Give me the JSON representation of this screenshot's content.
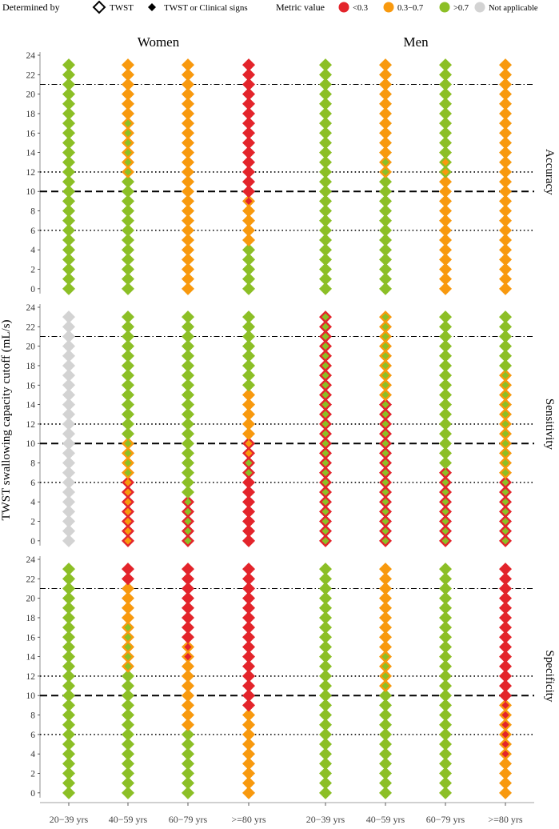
{
  "chart_data": {
    "type": "dot-matrix",
    "ylabel": "TWST swallowing capacity cutoff (mL/s)",
    "y_ticks": [
      0,
      2,
      4,
      6,
      8,
      10,
      12,
      14,
      16,
      18,
      20,
      22,
      24
    ],
    "y_values": [
      0,
      1,
      2,
      3,
      4,
      5,
      6,
      7,
      8,
      9,
      10,
      11,
      12,
      13,
      14,
      15,
      16,
      17,
      18,
      19,
      20,
      21,
      22,
      23
    ],
    "ylim": [
      0,
      24
    ],
    "groups": [
      "Women",
      "Men"
    ],
    "age_groups": [
      "20−39 yrs",
      "40−59 yrs",
      "60−79 yrs",
      ">=80 yrs"
    ],
    "panels": [
      "Accuracy",
      "Sensitivity",
      "Specificity"
    ],
    "reference_lines": [
      {
        "y": 6,
        "style": "dotted"
      },
      {
        "y": 10,
        "style": "dashed"
      },
      {
        "y": 12,
        "style": "dotted"
      },
      {
        "y": 21,
        "style": "dashdot"
      }
    ],
    "legend": {
      "shape_title": "Determined by",
      "shapes": [
        {
          "label": "TWST",
          "shape": "hollow-diamond"
        },
        {
          "label": "TWST or Clinical signs",
          "shape": "filled-diamond"
        }
      ],
      "color_title": "Metric value",
      "colors": [
        {
          "key": "R",
          "label": "<0.3",
          "color": "#e3242b"
        },
        {
          "key": "O",
          "label": "0.3−0.7",
          "color": "#f8990e"
        },
        {
          "key": "G",
          "label": ">0.7",
          "color": "#8cbf26"
        },
        {
          "key": "N",
          "label": "Not applicable",
          "color": "#d3d3d3"
        }
      ]
    },
    "note": "Each column string lists the metric category for cutoffs 0..23 mL/s: outer diamond (TWST) / inner diamond (TWST or Clinical signs). R = <0.3, O = 0.3-0.7, G = >0.7, N = Not applicable.",
    "data": {
      "Accuracy": {
        "Women": [
          {
            "outer": "GGGGGGGGGGGGGGGGGGGGGGGG",
            "inner": "GGGGGGGGGGGGGGGGGGGGGGGG"
          },
          {
            "outer": "GGGGGGGGGGGGOOOOOOOOOOOO",
            "inner": "GGGGGGGGGGGGGGGGGGOOOOOO"
          },
          {
            "outer": "OOOOOOOOOOOOOOOOOOOOOOOO",
            "inner": "OOOOOOOOOOOOOOOOOOOOOOOO"
          },
          {
            "outer": "GGGGGOOOOORRRRRRRRRRRRRR",
            "inner": "GGGGGOOOORRRRRRRRRRRRRRR"
          }
        ],
        "Men": [
          {
            "outer": "GGGGGGGGGGGGGGGGGGGGGGGG",
            "inner": "GGGGGGGGGGGGGGGGGGGGGGGG"
          },
          {
            "outer": "GGGGGGGGGGGGOOOOOOOOOOOO",
            "inner": "GGGGGGGGGGGGGGOOOOOOOOOO"
          },
          {
            "outer": "OOOOOOOOOOOOGGGGGGGGGGGG",
            "inner": "OOOOOOOOOOOOOOGGGGGGGGGG"
          },
          {
            "outer": "OOOOOOOOOOOOOOOOOOOOOOOO",
            "inner": "OOOOOOOOOOOOOOOOOOOOOOOO"
          }
        ]
      },
      "Sensitivity": {
        "Women": [
          {
            "outer": "NNNNNNNNNNNNNNNNNNNNNNNN",
            "inner": "NNNNNNNNNNNNNNNNNNNNNNNN"
          },
          {
            "outer": "RRRRRRROOOOGGGGGGGGGGGGG",
            "inner": "OOOOOOOGGGGGGGGGGGGGGGGG"
          },
          {
            "outer": "RRRRRGGGGGGGGGGGGGGGGGGG",
            "inner": "GGGGGGGGGGGGGGGGGGGGGGGG"
          },
          {
            "outer": "RRRRRRRRRRROOOOOGGGGGGGG",
            "inner": "RRRRRRRGGOOOOOOOGGGGGGGG"
          }
        ],
        "Men": [
          {
            "outer": "RRRRRRRRRRRRRRRRRRRRRRRR",
            "inner": "GGGGGGGGGGGGGGGGGGGGGGGG"
          },
          {
            "outer": "RRRRRRRRRRRRRRROOOOOOOOO",
            "inner": "GGGGGGGGGGGGGGGGGGGGGGGG"
          },
          {
            "outer": "RRRRRRRRGGGGGGGGGGGGGGGG",
            "inner": "GGGGGGGGGGGGGGGGGGGGGGGG"
          },
          {
            "outer": "RRRRRRROOOOOOOOOOOGGGGGG",
            "inner": "GGGGGGGGGGGGGGGGGGGGGGGG"
          }
        ]
      },
      "Specificity": {
        "Women": [
          {
            "outer": "GGGGGGGGGGGGGGGGGGGGGGGG",
            "inner": "GGGGGGGGGGGGGGGGGGGGGGGG"
          },
          {
            "outer": "GGGGGGGGGGGGGOOOOOOOOORR",
            "inner": "GGGGGGGGGGGGGGGGGGOOOORR"
          },
          {
            "outer": "GGGGGGGOOOOOOOOORRRRRRRR",
            "inner": "GGGGGGGOOOOOOORRRRRRRRRR"
          },
          {
            "outer": "OOOOOOOOORRRRRRRRRRRRRRR",
            "inner": "OOOOOOOOORRRRRRRRRRRRRRR"
          }
        ],
        "Men": [
          {
            "outer": "GGGGGGGGGGGGGGGGGGGGGGGG",
            "inner": "GGGGGGGGGGGGGGGGGGGGGGGG"
          },
          {
            "outer": "GGGGGGGGGGGOOOOOOOOOOOOO",
            "inner": "GGGGGGGGGGGGGGGOOOOOOOOO"
          },
          {
            "outer": "GGGGGGGGGGGGGGGGGGGGGGGG",
            "inner": "GGGGGGGGGGGGGGGGGGGGGGGG"
          },
          {
            "outer": "OOOOOOOOOORRRRRRRRRRRRRR",
            "inner": "OOOORRRRRRRRRRRRRRRRRRRR"
          }
        ]
      }
    }
  }
}
